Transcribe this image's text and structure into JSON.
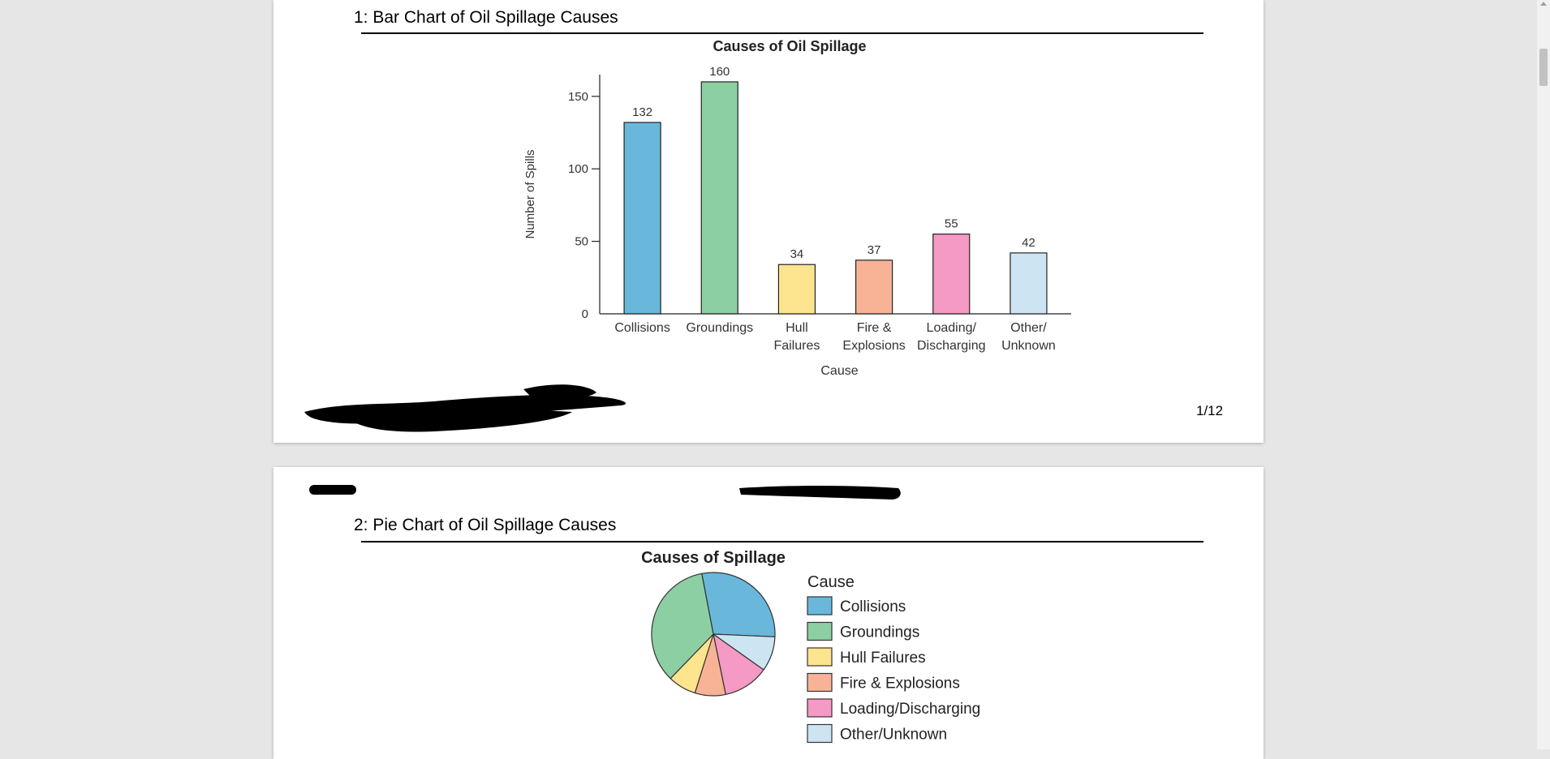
{
  "page1": {
    "section_title": "1: Bar Chart of Oil Spillage Causes",
    "page_number": "1/12"
  },
  "page2": {
    "section_title": "2: Pie Chart of Oil Spillage Causes"
  },
  "colors": {
    "collisions": "#69b8dc",
    "groundings": "#8ccfa3",
    "hull_failures": "#fde48e",
    "fire_explosions": "#f8b396",
    "loading_discharging": "#f49ac4",
    "other_unknown": "#cde5f3"
  },
  "chart_data": [
    {
      "type": "bar",
      "title": "Causes of Oil Spillage",
      "xlabel": "Cause",
      "ylabel": "Number of Spills",
      "categories": [
        [
          "Collisions"
        ],
        [
          "Groundings"
        ],
        [
          "Hull",
          "Failures"
        ],
        [
          "Fire &",
          "Explosions"
        ],
        [
          "Loading/",
          "Discharging"
        ],
        [
          "Other/",
          "Unknown"
        ]
      ],
      "values": [
        132,
        160,
        34,
        37,
        55,
        42
      ],
      "data_labels": [
        "132",
        "160",
        "34",
        "37",
        "55",
        "42"
      ],
      "yticks": [
        0,
        50,
        100,
        150
      ],
      "ylim": [
        0,
        165
      ],
      "colors": [
        "#69b8dc",
        "#8ccfa3",
        "#fde48e",
        "#f8b396",
        "#f49ac4",
        "#cde5f3"
      ],
      "grid": false
    },
    {
      "type": "pie",
      "title": "Causes of Spillage",
      "legend_title": "Cause",
      "legend_position": "right",
      "categories": [
        "Collisions",
        "Groundings",
        "Hull Failures",
        "Fire & Explosions",
        "Loading/Discharging",
        "Other/Unknown"
      ],
      "values": [
        132,
        160,
        34,
        37,
        55,
        42
      ],
      "colors": [
        "#69b8dc",
        "#8ccfa3",
        "#fde48e",
        "#f8b396",
        "#f49ac4",
        "#cde5f3"
      ]
    }
  ]
}
